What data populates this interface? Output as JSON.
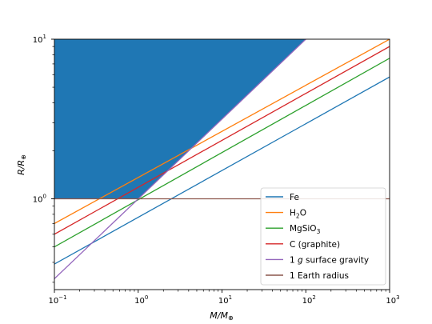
{
  "chart_data": {
    "type": "line",
    "title": "",
    "xlabel": {
      "main": "M/M",
      "sub": "⊕"
    },
    "ylabel": {
      "main": "R/R",
      "sub": "⊕"
    },
    "xscale": "log",
    "yscale": "log",
    "xlim": [
      0.1,
      1000
    ],
    "ylim": [
      0.27,
      10
    ],
    "x_ticks": [
      {
        "base": "10",
        "exp": "−1",
        "value": 0.1
      },
      {
        "base": "10",
        "exp": "0",
        "value": 1
      },
      {
        "base": "10",
        "exp": "1",
        "value": 10
      },
      {
        "base": "10",
        "exp": "2",
        "value": 100
      },
      {
        "base": "10",
        "exp": "3",
        "value": 1000
      }
    ],
    "y_ticks": [
      {
        "base": "10",
        "exp": "0",
        "value": 1
      },
      {
        "base": "10",
        "exp": "1",
        "value": 10
      }
    ],
    "grid": false,
    "legend_position": "lower-right",
    "shaded_region": {
      "color": "#1f77b4",
      "x": [
        0.1,
        100,
        2.0,
        1.0,
        0.1
      ],
      "y": [
        10,
        10,
        1.415,
        1.0,
        1.0
      ]
    },
    "series": [
      {
        "name": "Fe",
        "name_sub": "",
        "name_tail": "",
        "color": "#1f77b4",
        "x": [
          0.1,
          1000
        ],
        "y": [
          0.39,
          5.8
        ]
      },
      {
        "name": "H",
        "name_sub": "2",
        "name_tail": "O",
        "color": "#ff7f0e",
        "x": [
          0.1,
          1000
        ],
        "y": [
          0.7,
          10.0
        ]
      },
      {
        "name": "MgSiO",
        "name_sub": "3",
        "name_tail": "",
        "color": "#2ca02c",
        "x": [
          0.1,
          1000
        ],
        "y": [
          0.5,
          7.6
        ]
      },
      {
        "name": "C (graphite)",
        "name_sub": "",
        "name_tail": "",
        "color": "#d62728",
        "x": [
          0.1,
          1000
        ],
        "y": [
          0.6,
          9.0
        ]
      },
      {
        "name": "1 ",
        "name_italic": "g",
        "name_sub": "",
        "name_tail": " surface gravity",
        "color": "#9467bd",
        "x": [
          0.1,
          100
        ],
        "y": [
          0.316,
          10.0
        ]
      },
      {
        "name": "1 Earth radius",
        "name_sub": "",
        "name_tail": "",
        "color": "#8c564b",
        "x": [
          0.1,
          1000
        ],
        "y": [
          1.0,
          1.0
        ]
      }
    ]
  }
}
